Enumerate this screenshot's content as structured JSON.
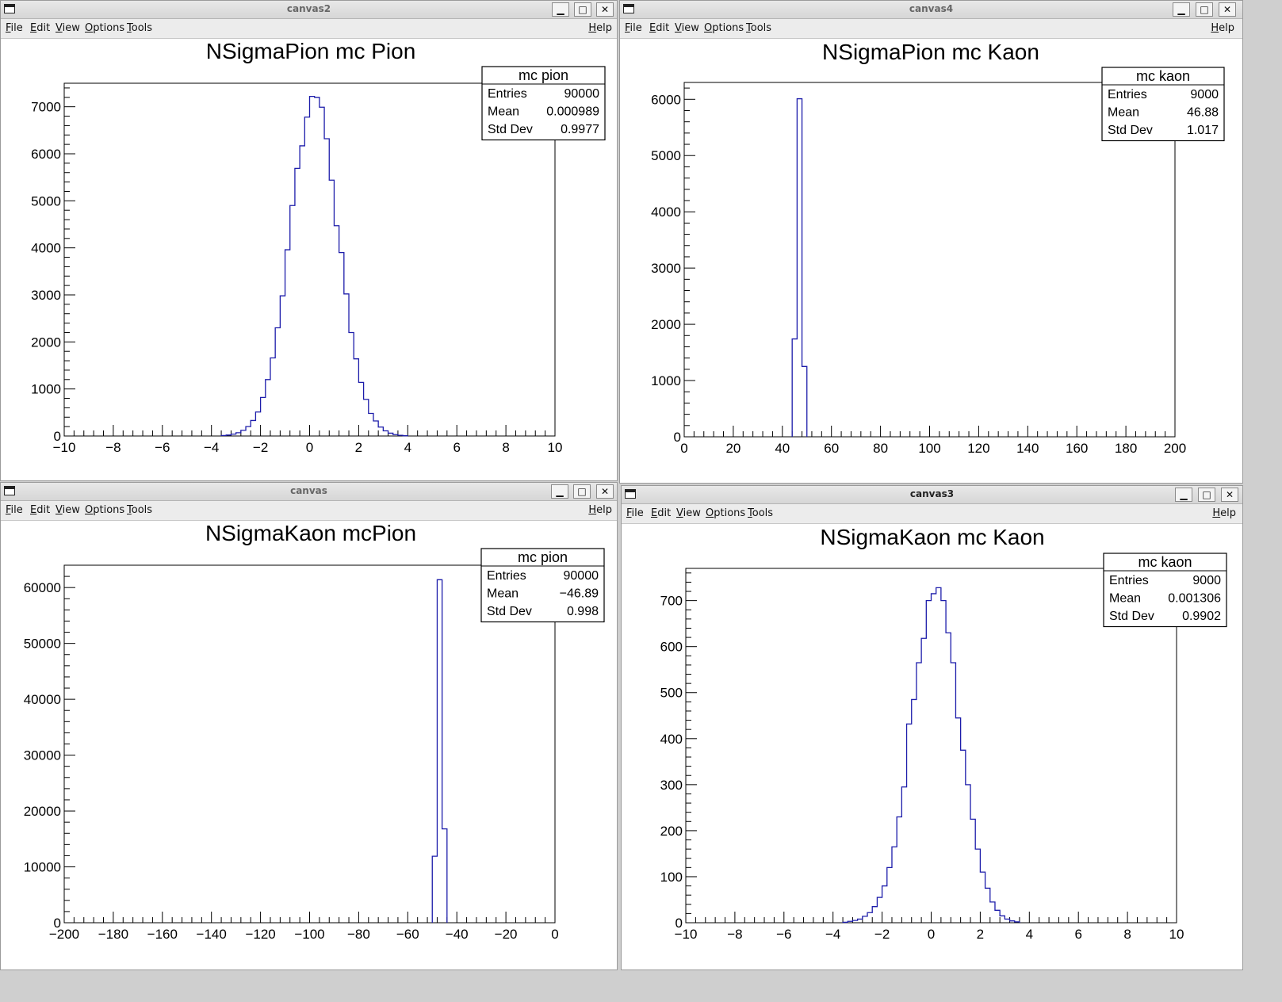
{
  "menu": {
    "file": "File",
    "edit": "Edit",
    "view": "View",
    "options": "Options",
    "tools": "Tools",
    "help": "Help"
  },
  "win_buttons": {
    "minimize": "▁",
    "maximize": "□",
    "close": "✕"
  },
  "windows": [
    {
      "title": "canvas2",
      "chart_data": {
        "type": "bar",
        "title": "NSigmaPion mc Pion",
        "xlabel": "",
        "ylabel": "",
        "xlim": [
          -10,
          10
        ],
        "ylim": [
          0,
          7500
        ],
        "xticks": [
          "−10",
          "−8",
          "−6",
          "−4",
          "−2",
          "0",
          "2",
          "4",
          "6",
          "8",
          "10"
        ],
        "yticks": [
          "0",
          "1000",
          "2000",
          "3000",
          "4000",
          "5000",
          "6000",
          "7000"
        ],
        "series": [
          {
            "color": "#1c1caa",
            "bins": [
              [
                -3.6,
                10
              ],
              [
                -3.4,
                20
              ],
              [
                -3.2,
                40
              ],
              [
                -3.0,
                70
              ],
              [
                -2.8,
                120
              ],
              [
                -2.6,
                200
              ],
              [
                -2.4,
                330
              ],
              [
                -2.2,
                510
              ],
              [
                -2.0,
                820
              ],
              [
                -1.8,
                1200
              ],
              [
                -1.6,
                1660
              ],
              [
                -1.4,
                2300
              ],
              [
                -1.2,
                2980
              ],
              [
                -1.0,
                3960
              ],
              [
                -0.8,
                4900
              ],
              [
                -0.6,
                5690
              ],
              [
                -0.4,
                6170
              ],
              [
                -0.2,
                6780
              ],
              [
                0.0,
                7220
              ],
              [
                0.2,
                7200
              ],
              [
                0.4,
                6990
              ],
              [
                0.6,
                6320
              ],
              [
                0.8,
                5440
              ],
              [
                1.0,
                4470
              ],
              [
                1.2,
                3900
              ],
              [
                1.4,
                3020
              ],
              [
                1.6,
                2200
              ],
              [
                1.8,
                1640
              ],
              [
                2.0,
                1140
              ],
              [
                2.2,
                780
              ],
              [
                2.4,
                480
              ],
              [
                2.6,
                320
              ],
              [
                2.8,
                190
              ],
              [
                3.0,
                110
              ],
              [
                3.2,
                60
              ],
              [
                3.4,
                30
              ],
              [
                3.6,
                15
              ],
              [
                3.8,
                5
              ]
            ],
            "bin_width": 0.2
          }
        ],
        "stats": {
          "name": "mc pion",
          "rows": [
            [
              "Entries",
              "90000"
            ],
            [
              "Mean",
              "0.000989"
            ],
            [
              "Std Dev",
              "0.9977"
            ]
          ]
        }
      }
    },
    {
      "title": "canvas4",
      "chart_data": {
        "type": "bar",
        "title": "NSigmaPion mc Kaon",
        "xlabel": "",
        "ylabel": "",
        "xlim": [
          0,
          200
        ],
        "ylim": [
          0,
          6300
        ],
        "xticks": [
          "0",
          "20",
          "40",
          "60",
          "80",
          "100",
          "120",
          "140",
          "160",
          "180",
          "200"
        ],
        "yticks": [
          "0",
          "1000",
          "2000",
          "3000",
          "4000",
          "5000",
          "6000"
        ],
        "series": [
          {
            "color": "#1c1caa",
            "bins": [
              [
                44,
                1740
              ],
              [
                46,
                6010
              ],
              [
                48,
                1250
              ]
            ],
            "bin_width": 2
          }
        ],
        "stats": {
          "name": "mc kaon",
          "rows": [
            [
              "Entries",
              "9000"
            ],
            [
              "Mean",
              "46.88"
            ],
            [
              "Std Dev",
              "1.017"
            ]
          ]
        }
      }
    },
    {
      "title": "canvas",
      "chart_data": {
        "type": "bar",
        "title": "NSigmaKaon mcPion",
        "xlabel": "",
        "ylabel": "",
        "xlim": [
          -200,
          0
        ],
        "ylim": [
          0,
          64000
        ],
        "xticks": [
          "−200",
          "−180",
          "−160",
          "−140",
          "−120",
          "−100",
          "−80",
          "−60",
          "−40",
          "−20",
          "0"
        ],
        "yticks": [
          "0",
          "10000",
          "20000",
          "30000",
          "40000",
          "50000",
          "60000"
        ],
        "series": [
          {
            "color": "#1c1caa",
            "bins": [
              [
                -50,
                11900
              ],
              [
                -48,
                61400
              ],
              [
                -46,
                16800
              ]
            ],
            "bin_width": 2
          }
        ],
        "stats": {
          "name": "mc pion",
          "rows": [
            [
              "Entries",
              "90000"
            ],
            [
              "Mean",
              "−46.89"
            ],
            [
              "Std Dev",
              "0.998"
            ]
          ]
        }
      }
    },
    {
      "title": "canvas3",
      "chart_data": {
        "type": "bar",
        "title": "NSigmaKaon mc Kaon",
        "xlabel": "",
        "ylabel": "",
        "xlim": [
          -10,
          10
        ],
        "ylim": [
          0,
          770
        ],
        "xticks": [
          "−10",
          "−8",
          "−6",
          "−4",
          "−2",
          "0",
          "2",
          "4",
          "6",
          "8",
          "10"
        ],
        "yticks": [
          "0",
          "100",
          "200",
          "300",
          "400",
          "500",
          "600",
          "700"
        ],
        "series": [
          {
            "color": "#1c1caa",
            "bins": [
              [
                -3.6,
                1
              ],
              [
                -3.4,
                3
              ],
              [
                -3.2,
                5
              ],
              [
                -3.0,
                8
              ],
              [
                -2.8,
                14
              ],
              [
                -2.6,
                22
              ],
              [
                -2.4,
                35
              ],
              [
                -2.2,
                55
              ],
              [
                -2.0,
                80
              ],
              [
                -1.8,
                120
              ],
              [
                -1.6,
                165
              ],
              [
                -1.4,
                230
              ],
              [
                -1.2,
                295
              ],
              [
                -1.0,
                432
              ],
              [
                -0.8,
                485
              ],
              [
                -0.6,
                565
              ],
              [
                -0.4,
                618
              ],
              [
                -0.2,
                700
              ],
              [
                0.0,
                715
              ],
              [
                0.2,
                728
              ],
              [
                0.4,
                700
              ],
              [
                0.6,
                630
              ],
              [
                0.8,
                565
              ],
              [
                1.0,
                445
              ],
              [
                1.2,
                375
              ],
              [
                1.4,
                300
              ],
              [
                1.6,
                225
              ],
              [
                1.8,
                160
              ],
              [
                2.0,
                110
              ],
              [
                2.2,
                75
              ],
              [
                2.4,
                45
              ],
              [
                2.6,
                27
              ],
              [
                2.8,
                15
              ],
              [
                3.0,
                8
              ],
              [
                3.2,
                4
              ],
              [
                3.4,
                2
              ]
            ],
            "bin_width": 0.2
          }
        ],
        "stats": {
          "name": "mc kaon",
          "rows": [
            [
              "Entries",
              "9000"
            ],
            [
              "Mean",
              "0.001306"
            ],
            [
              "Std Dev",
              "0.9902"
            ]
          ]
        }
      }
    }
  ]
}
